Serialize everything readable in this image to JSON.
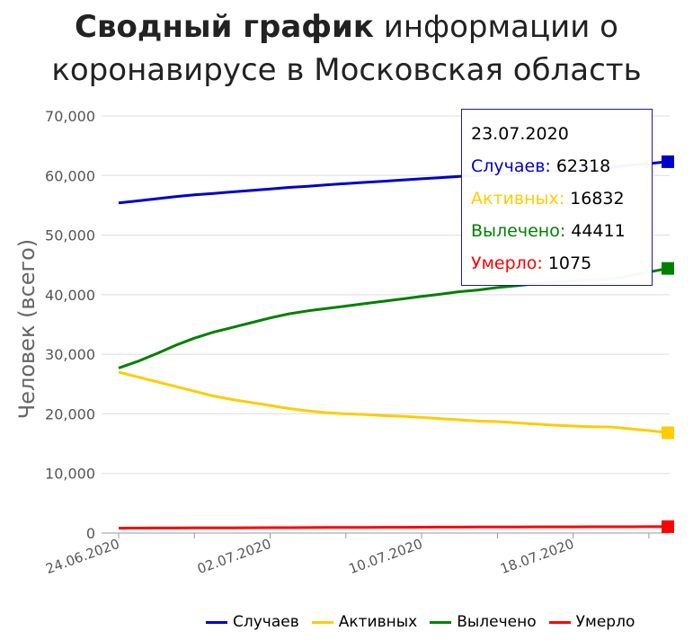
{
  "title": {
    "bold": "Сводный график",
    "rest_line1": "информации о",
    "line2": "коронавирусе в Московская область"
  },
  "chart_data": {
    "type": "line",
    "ylabel": "Человек (всего)",
    "ylim": [
      0,
      70000
    ],
    "yticks": [
      "0",
      "10,000",
      "20,000",
      "30,000",
      "40,000",
      "50,000",
      "60,000",
      "70,000"
    ],
    "x_tick_labels": [
      "24.06.2020",
      "02.07.2020",
      "10.07.2020",
      "18.07.2020"
    ],
    "x_start": "24.06.2020",
    "x_end": "23.07.2020",
    "grid": true,
    "legend_position": "bottom",
    "series": [
      {
        "name": "Случаев",
        "color": "#0000cc",
        "values": [
          55400,
          55750,
          56100,
          56450,
          56750,
          57000,
          57250,
          57500,
          57750,
          58000,
          58200,
          58450,
          58650,
          58850,
          59050,
          59250,
          59450,
          59650,
          59850,
          60000,
          60200,
          60400,
          60550,
          60750,
          60950,
          61200,
          61450,
          61700,
          62000,
          62318
        ]
      },
      {
        "name": "Активных",
        "color": "#ffcc00",
        "values": [
          27000,
          26200,
          25400,
          24600,
          23800,
          23000,
          22400,
          21900,
          21400,
          20900,
          20500,
          20200,
          20000,
          19900,
          19700,
          19600,
          19400,
          19200,
          19000,
          18800,
          18700,
          18500,
          18300,
          18100,
          17950,
          17850,
          17800,
          17500,
          17200,
          16832
        ]
      },
      {
        "name": "Вылечено",
        "color": "#008000",
        "values": [
          27700,
          28800,
          30100,
          31500,
          32700,
          33700,
          34500,
          35300,
          36100,
          36800,
          37300,
          37700,
          38100,
          38500,
          38900,
          39300,
          39700,
          40100,
          40500,
          40800,
          41200,
          41500,
          41800,
          42100,
          42300,
          42500,
          42600,
          43200,
          43800,
          44411
        ]
      },
      {
        "name": "Умерло",
        "color": "#ff0000",
        "values": [
          820,
          830,
          840,
          850,
          860,
          870,
          880,
          890,
          900,
          910,
          920,
          930,
          940,
          950,
          960,
          970,
          980,
          990,
          1000,
          1010,
          1020,
          1030,
          1035,
          1040,
          1045,
          1050,
          1055,
          1062,
          1068,
          1075
        ]
      }
    ]
  },
  "tooltip": {
    "date": "23.07.2020",
    "rows": [
      {
        "label": "Случаев:",
        "value": "62318",
        "color": "#0000cc"
      },
      {
        "label": "Активных:",
        "value": "16832",
        "color": "#ffcc00"
      },
      {
        "label": "Вылечено:",
        "value": "44411",
        "color": "#008000"
      },
      {
        "label": "Умерло:",
        "value": "1075",
        "color": "#ff0000"
      }
    ]
  },
  "legend": [
    {
      "label": "Случаев",
      "color": "#0000cc"
    },
    {
      "label": "Активных",
      "color": "#ffcc00"
    },
    {
      "label": "Вылечено",
      "color": "#008000"
    },
    {
      "label": "Умерло",
      "color": "#ff0000"
    }
  ]
}
